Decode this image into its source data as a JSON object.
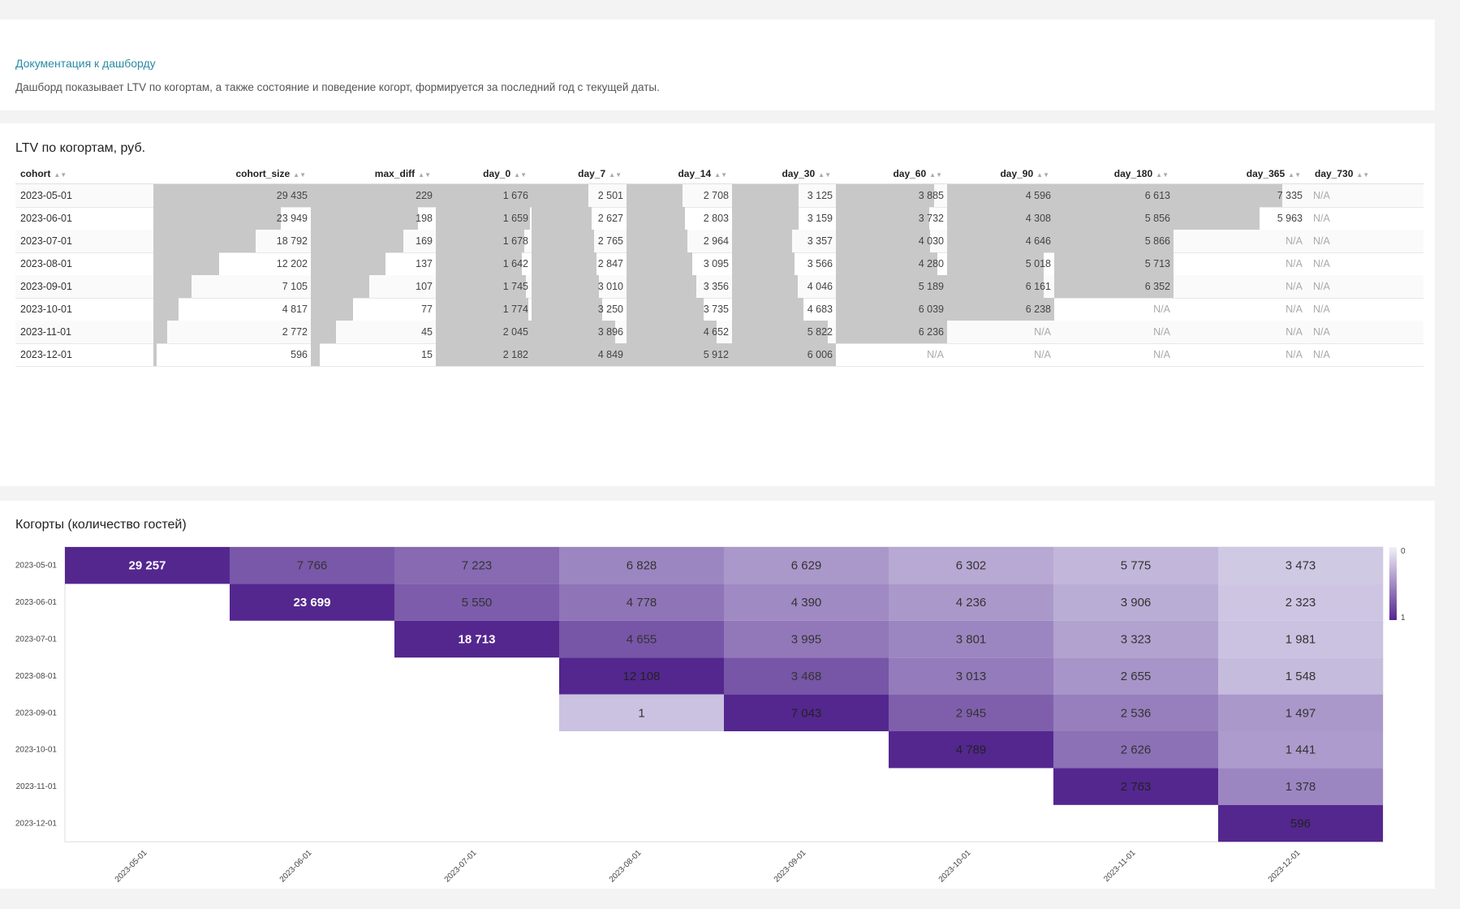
{
  "doc": {
    "link": "Документация к дашборду",
    "description": "Дашборд показывает LTV по когортам, а также состояние и поведение когорт, формируется за последний год с текущей даты."
  },
  "ltv": {
    "title": "LTV по когортам, руб.",
    "columns": [
      "cohort",
      "cohort_size",
      "max_diff",
      "day_0",
      "day_7",
      "day_14",
      "day_30",
      "day_60",
      "day_90",
      "day_180",
      "day_365",
      "day_730"
    ],
    "rows": [
      {
        "cohort": "2023-05-01",
        "values": [
          "29 435",
          "229",
          "1 676",
          "2 501",
          "2 708",
          "3 125",
          "3 885",
          "4 596",
          "6 613",
          "7 335",
          "N/A"
        ],
        "fill": [
          1.0,
          1.0,
          1.0,
          0.6,
          0.53,
          0.64,
          0.88,
          1.0,
          1.0,
          0.82,
          0
        ]
      },
      {
        "cohort": "2023-06-01",
        "values": [
          "23 949",
          "198",
          "1 659",
          "2 627",
          "2 803",
          "3 159",
          "3 732",
          "4 308",
          "5 856",
          "5 963",
          "N/A"
        ],
        "fill": [
          0.81,
          0.86,
          0.98,
          0.63,
          0.55,
          0.64,
          0.84,
          1.0,
          1.0,
          0.65,
          0
        ]
      },
      {
        "cohort": "2023-07-01",
        "values": [
          "18 792",
          "169",
          "1 678",
          "2 765",
          "2 964",
          "3 357",
          "4 030",
          "4 646",
          "5 866",
          "N/A",
          "N/A"
        ],
        "fill": [
          0.65,
          0.74,
          0.92,
          0.66,
          0.58,
          0.58,
          0.85,
          1.0,
          1.0,
          0,
          0
        ]
      },
      {
        "cohort": "2023-08-01",
        "values": [
          "12 202",
          "137",
          "1 642",
          "2 847",
          "3 095",
          "3 566",
          "4 280",
          "5 018",
          "5 713",
          "N/A",
          "N/A"
        ],
        "fill": [
          0.42,
          0.6,
          0.9,
          0.68,
          0.62,
          0.6,
          0.91,
          0.9,
          1.0,
          0,
          0
        ]
      },
      {
        "cohort": "2023-09-01",
        "values": [
          "7 105",
          "107",
          "1 745",
          "3 010",
          "3 356",
          "4 046",
          "5 189",
          "6 161",
          "6 352",
          "N/A",
          "N/A"
        ],
        "fill": [
          0.24,
          0.47,
          0.94,
          0.71,
          0.66,
          0.63,
          1.0,
          0.9,
          1.0,
          0,
          0
        ]
      },
      {
        "cohort": "2023-10-01",
        "values": [
          "4 817",
          "77",
          "1 774",
          "3 250",
          "3 735",
          "4 683",
          "6 039",
          "6 238",
          "N/A",
          "N/A",
          "N/A"
        ],
        "fill": [
          0.16,
          0.34,
          0.97,
          0.74,
          0.73,
          0.69,
          1.0,
          1.0,
          0,
          0,
          0
        ]
      },
      {
        "cohort": "2023-11-01",
        "values": [
          "2 772",
          "45",
          "2 045",
          "3 896",
          "4 652",
          "5 822",
          "6 236",
          "N/A",
          "N/A",
          "N/A",
          "N/A"
        ],
        "fill": [
          0.09,
          0.2,
          1.0,
          0.88,
          0.85,
          0.92,
          1.0,
          0,
          0,
          0,
          0
        ]
      },
      {
        "cohort": "2023-12-01",
        "values": [
          "596",
          "15",
          "2 182",
          "4 849",
          "5 912",
          "6 006",
          "N/A",
          "N/A",
          "N/A",
          "N/A",
          "N/A"
        ],
        "fill": [
          0.02,
          0.07,
          1.0,
          1.0,
          1.0,
          1.0,
          0,
          0,
          0,
          0,
          0
        ]
      }
    ]
  },
  "heatmap": {
    "title": "Когорты (количество гостей)",
    "legend_min": "0",
    "legend_max": "1",
    "colors": {
      "high": "#54278f",
      "low": "#dad7eb"
    },
    "chart_data": {
      "type": "heatmap",
      "x_labels": [
        "2023-05-01",
        "2023-06-01",
        "2023-07-01",
        "2023-08-01",
        "2023-09-01",
        "2023-10-01",
        "2023-11-01",
        "2023-12-01"
      ],
      "y_labels": [
        "2023-05-01",
        "2023-06-01",
        "2023-07-01",
        "2023-08-01",
        "2023-09-01",
        "2023-10-01",
        "2023-11-01",
        "2023-12-01"
      ],
      "values": [
        [
          29257,
          7766,
          7223,
          6828,
          6629,
          6302,
          5775,
          3473
        ],
        [
          null,
          23699,
          5550,
          4778,
          4390,
          4236,
          3906,
          2323
        ],
        [
          null,
          null,
          18713,
          4655,
          3995,
          3801,
          3323,
          1981
        ],
        [
          null,
          null,
          null,
          12108,
          3468,
          3013,
          2655,
          1548
        ],
        [
          null,
          null,
          null,
          1,
          7043,
          2945,
          2536,
          1497
        ],
        [
          null,
          null,
          null,
          null,
          null,
          4789,
          2626,
          1441
        ],
        [
          null,
          null,
          null,
          null,
          null,
          null,
          2763,
          1378
        ],
        [
          null,
          null,
          null,
          null,
          null,
          null,
          null,
          596
        ]
      ],
      "labels": [
        [
          "29 257",
          "7 766",
          "7 223",
          "6 828",
          "6 629",
          "6 302",
          "5 775",
          "3 473"
        ],
        [
          "",
          "23 699",
          "5 550",
          "4 778",
          "4 390",
          "4 236",
          "3 906",
          "2 323"
        ],
        [
          "",
          "",
          "18 713",
          "4 655",
          "3 995",
          "3 801",
          "3 323",
          "1 981"
        ],
        [
          "",
          "",
          "",
          "12 108",
          "3 468",
          "3 013",
          "2 655",
          "1 548"
        ],
        [
          "",
          "",
          "",
          "1",
          "7 043",
          "2 945",
          "2 536",
          "1 497"
        ],
        [
          "",
          "",
          "",
          "",
          "",
          "4 789",
          "2 626",
          "1 441"
        ],
        [
          "",
          "",
          "",
          "",
          "",
          "",
          "2 763",
          "1 378"
        ],
        [
          "",
          "",
          "",
          "",
          "",
          "",
          "",
          "596"
        ]
      ],
      "row_shade": [
        [
          1.0,
          0.72,
          0.62,
          0.46,
          0.36,
          0.26,
          0.18,
          0.08
        ],
        [
          0,
          1.0,
          0.7,
          0.56,
          0.44,
          0.36,
          0.24,
          0.1
        ],
        [
          0,
          0,
          1.0,
          0.74,
          0.54,
          0.46,
          0.3,
          0.12
        ],
        [
          0,
          0,
          0,
          1.0,
          0.74,
          0.52,
          0.38,
          0.16
        ],
        [
          0,
          0,
          0,
          0.12,
          1.0,
          0.68,
          0.5,
          0.36
        ],
        [
          0,
          0,
          0,
          0,
          0,
          1.0,
          0.58,
          0.34
        ],
        [
          0,
          0,
          0,
          0,
          0,
          0,
          1.0,
          0.46
        ],
        [
          0,
          0,
          0,
          0,
          0,
          0,
          0,
          1.0
        ]
      ]
    }
  }
}
